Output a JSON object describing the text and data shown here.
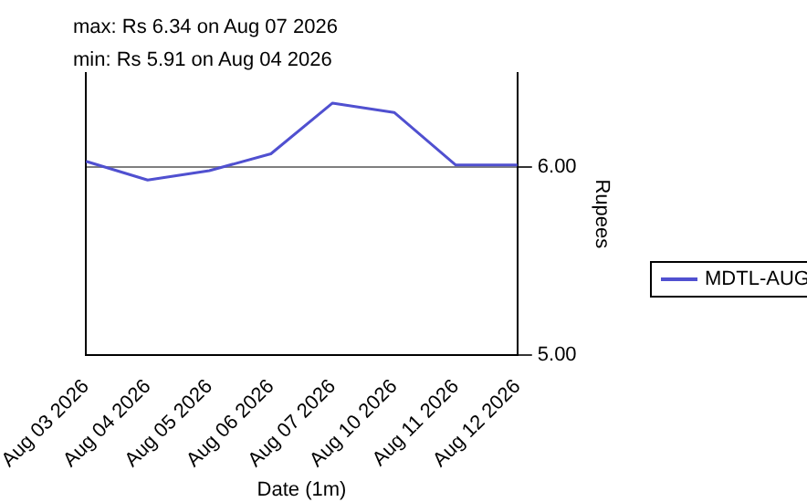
{
  "chart_data": {
    "type": "line",
    "xlabel": "Date (1m)",
    "ylabel": "Rupees",
    "annotations": [
      "max: Rs 6.34 on Aug 07 2026",
      "min: Rs 5.91 on Aug 04 2026"
    ],
    "categories": [
      "Aug 03 2026",
      "Aug 04 2026",
      "Aug 05 2026",
      "Aug 06 2026",
      "Aug 07 2026",
      "Aug 10 2026",
      "Aug 11 2026",
      "Aug 12 2026"
    ],
    "series": [
      {
        "name": "MDTL-AUG",
        "color": "#5050d0",
        "values": [
          6.03,
          5.93,
          5.98,
          6.07,
          6.34,
          6.29,
          6.01,
          6.01
        ]
      }
    ],
    "ylim": [
      5.0,
      6.5
    ],
    "yticks": [
      {
        "value": 5,
        "label": "5.00"
      },
      {
        "value": 6,
        "label": "6.00"
      }
    ],
    "grid": "y",
    "legend": "right",
    "marker": "none",
    "line_style": "solid"
  }
}
